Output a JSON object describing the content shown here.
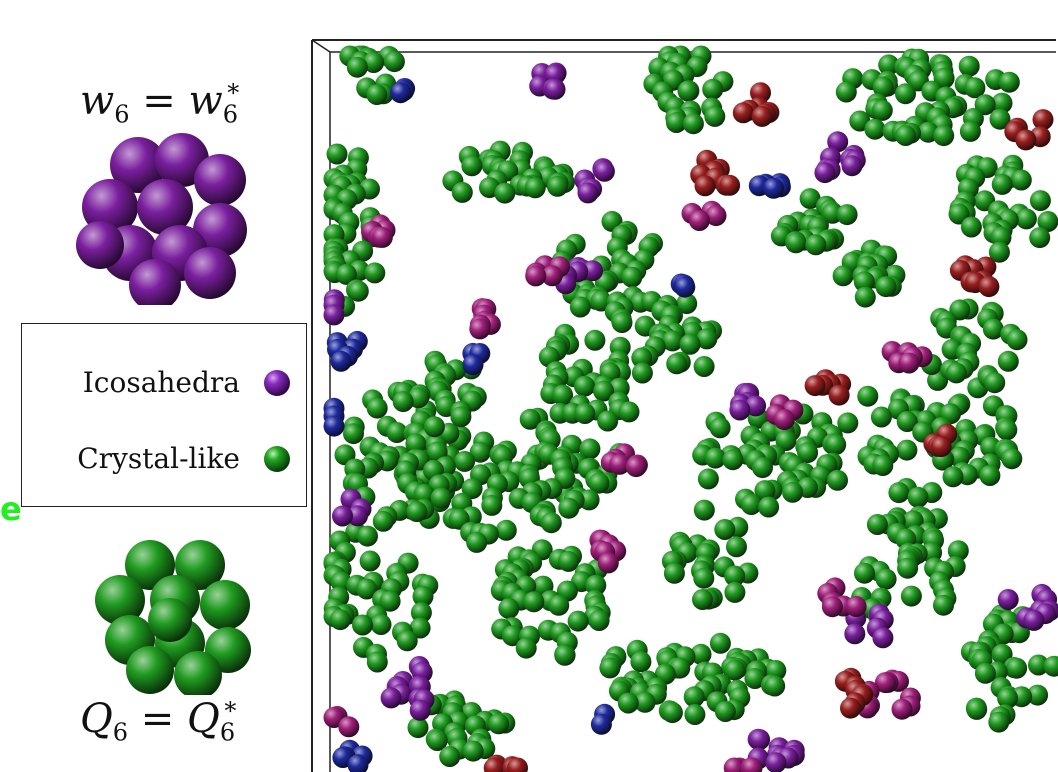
{
  "labels": {
    "top_formula": {
      "base": "w",
      "sub": "6",
      "op": "=",
      "rhs_base": "w",
      "rhs_sub": "6",
      "rhs_sup": "*"
    },
    "bottom_formula": {
      "base": "Q",
      "sub": "6",
      "op": "=",
      "rhs_base": "Q",
      "rhs_sub": "6",
      "rhs_sup": "*"
    },
    "stray_text": "e"
  },
  "legend": {
    "items": [
      {
        "label": "Icosahedra",
        "color": "#6a1a9a"
      },
      {
        "label": "Crystal-like",
        "color": "#1f9a1f"
      }
    ]
  },
  "colors": {
    "green": "#1f9a1f",
    "purple": "#7a1f9e",
    "blue": "#1e2a9e",
    "red": "#9a1f1f",
    "magenta": "#a01f7a",
    "frame": "#222222"
  }
}
